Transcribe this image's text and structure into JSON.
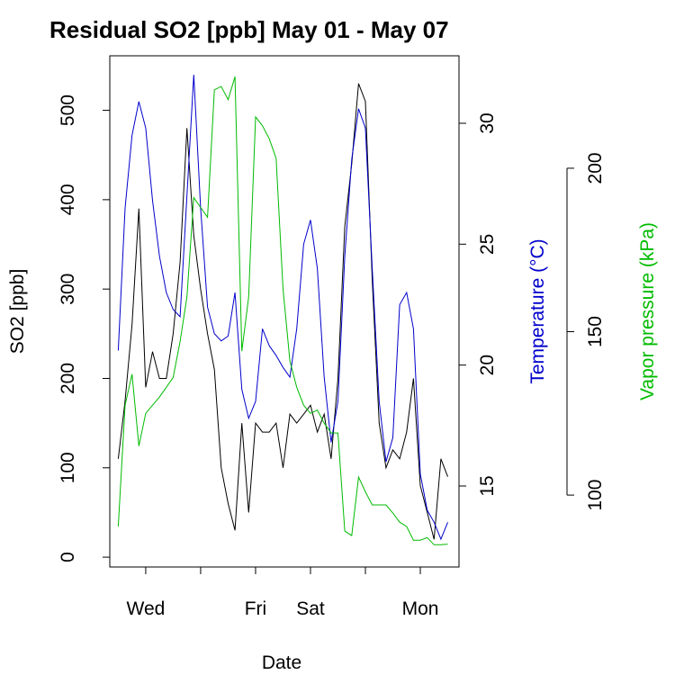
{
  "chart_data": {
    "type": "line",
    "title": "Residual SO2 [ppb] May 01 - May 07",
    "xlabel": "Date",
    "ylabel": "SO2 [ppb]",
    "y2label": "Temperature (°C)",
    "y3label": "Vapor pressure (kPa)",
    "x": [
      12,
      15,
      18,
      21,
      24,
      27,
      30,
      33,
      36,
      39,
      42,
      45,
      48,
      51,
      54,
      57,
      60,
      63,
      66,
      69,
      72,
      75,
      78,
      81,
      84,
      87,
      90,
      93,
      96,
      99,
      102,
      105,
      108,
      111,
      114,
      117,
      120,
      123,
      126,
      129,
      132,
      135,
      138,
      141,
      144,
      147,
      150,
      153,
      156
    ],
    "xlim": [
      8.3,
      160.9
    ],
    "xticks": [
      {
        "value": 24,
        "label": "Wed"
      },
      {
        "value": 48,
        "label": null
      },
      {
        "value": 72,
        "label": "Fri"
      },
      {
        "value": 96,
        "label": "Sat"
      },
      {
        "value": 120,
        "label": null
      },
      {
        "value": 144,
        "label": "Mon"
      }
    ],
    "ylim": [
      -11,
      561
    ],
    "yticks": [
      0,
      100,
      200,
      300,
      400,
      500
    ],
    "y2lim": [
      11.65,
      32.79
    ],
    "y2ticks": [
      15,
      20,
      25,
      30
    ],
    "y3lim": [
      78,
      234.4
    ],
    "y3ticks": [
      100,
      150,
      200
    ],
    "series": [
      {
        "axis": "y",
        "color": "#000000",
        "values": [
          110,
          175,
          260,
          390,
          190,
          230,
          200,
          200,
          250,
          330,
          480,
          360,
          300,
          250,
          210,
          100,
          60,
          30,
          150,
          50,
          150,
          140,
          140,
          150,
          100,
          160,
          150,
          160,
          170,
          140,
          160,
          110,
          200,
          370,
          440,
          530,
          510,
          310,
          150,
          100,
          120,
          110,
          140,
          200,
          80,
          50,
          20,
          110,
          90
        ]
      },
      {
        "axis": "y2",
        "color": "#0000cc",
        "values": [
          20.6,
          26.5,
          29.5,
          30.9,
          29.8,
          26.8,
          24.5,
          23.0,
          22.3,
          22.0,
          27.0,
          32.0,
          26.5,
          22.4,
          21.3,
          21.0,
          21.2,
          23.0,
          19.0,
          17.8,
          18.5,
          21.5,
          20.8,
          20.4,
          19.9,
          19.5,
          21.5,
          25.0,
          26.0,
          24.0,
          19.5,
          16.8,
          18.5,
          24.5,
          28.5,
          30.6,
          29.8,
          24.0,
          18.5,
          16.0,
          17.0,
          22.5,
          23.0,
          21.5,
          15.5,
          14.0,
          13.5,
          12.8,
          13.5
        ]
      },
      {
        "axis": "y3",
        "color": "#00bb00",
        "values": [
          90.4,
          127.5,
          137,
          115,
          125,
          127.5,
          130,
          133,
          136,
          147,
          160.6,
          191,
          188,
          185,
          224,
          225,
          221,
          228,
          144,
          160.6,
          215.7,
          213,
          209,
          203,
          163,
          141,
          133,
          127.5,
          125,
          126,
          122,
          119,
          119,
          89,
          87.6,
          105.5,
          101,
          97,
          97,
          97,
          94.5,
          91.7,
          90.4,
          86.2,
          86.2,
          87,
          84.8,
          84.8,
          85
        ]
      }
    ]
  }
}
